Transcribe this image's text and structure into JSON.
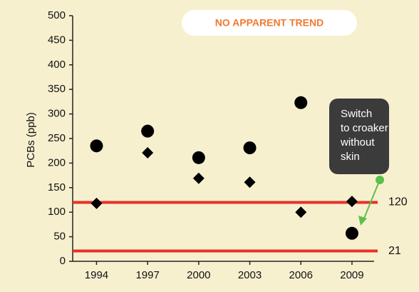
{
  "chart_data": {
    "type": "scatter",
    "annotation": "NO APPARENT TREND",
    "ylabel": "PCBs (ppb)",
    "x": [
      1994,
      1997,
      2000,
      2003,
      2006,
      2009
    ],
    "xlim": [
      1992.6,
      2010.3
    ],
    "xticks": [
      1994,
      1997,
      2000,
      2003,
      2006,
      2009
    ],
    "ylim": [
      0,
      500
    ],
    "yticks": [
      0,
      50,
      100,
      150,
      200,
      250,
      300,
      350,
      400,
      450,
      500
    ],
    "series": [
      {
        "marker": "circle",
        "color": "#000000",
        "values": [
          235,
          265,
          211,
          231,
          323,
          57
        ]
      },
      {
        "marker": "diamond",
        "color": "#000000",
        "values": [
          118,
          221,
          169,
          161,
          100,
          122
        ]
      }
    ],
    "reference_lines": [
      {
        "value": 120,
        "color": "#e8302a"
      },
      {
        "value": 21,
        "color": "#e8302a"
      }
    ],
    "callout": [
      "Switch",
      "to croaker",
      "without",
      "skin"
    ],
    "callout_arrow_color": "#5cc04a"
  }
}
